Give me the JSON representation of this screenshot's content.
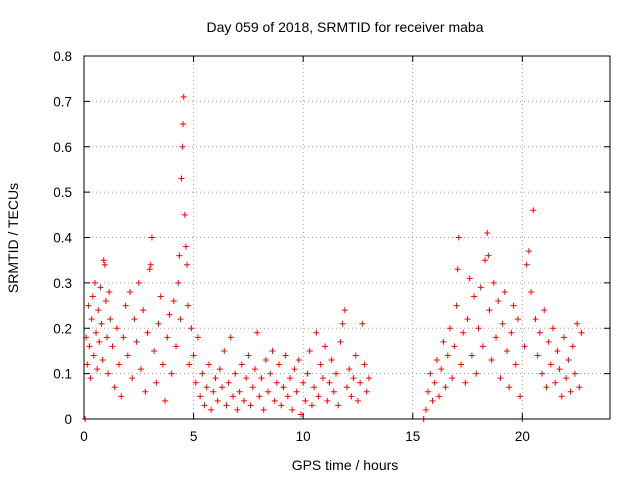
{
  "chart_data": {
    "type": "scatter",
    "title": "Day 059 of 2018, SRMTID for receiver maba",
    "xlabel": "GPS time / hours",
    "ylabel": "SRMTID / TECUs",
    "xlim": [
      0,
      24
    ],
    "ylim": [
      0,
      0.8
    ],
    "xticks": [
      0,
      5,
      10,
      15,
      20
    ],
    "xtick_labels": [
      "0",
      "5",
      "10",
      "15",
      "20"
    ],
    "yticks": [
      0,
      0.1,
      0.2,
      0.3,
      0.4,
      0.5,
      0.6,
      0.7,
      0.8
    ],
    "ytick_labels": [
      "0",
      "0.1",
      "0.2",
      "0.3",
      "0.4",
      "0.5",
      "0.6",
      "0.7",
      "0.8"
    ],
    "grid": true,
    "marker": "plus",
    "color": "#ff0000",
    "series": [
      {
        "name": "SRMTID",
        "points": [
          [
            0.05,
            0.0
          ],
          [
            0.1,
            0.18
          ],
          [
            0.15,
            0.12
          ],
          [
            0.2,
            0.25
          ],
          [
            0.25,
            0.16
          ],
          [
            0.3,
            0.09
          ],
          [
            0.35,
            0.22
          ],
          [
            0.4,
            0.27
          ],
          [
            0.45,
            0.14
          ],
          [
            0.5,
            0.3
          ],
          [
            0.55,
            0.19
          ],
          [
            0.6,
            0.11
          ],
          [
            0.65,
            0.24
          ],
          [
            0.7,
            0.17
          ],
          [
            0.75,
            0.29
          ],
          [
            0.8,
            0.21
          ],
          [
            0.85,
            0.13
          ],
          [
            0.9,
            0.35
          ],
          [
            0.95,
            0.34
          ],
          [
            1.0,
            0.26
          ],
          [
            1.05,
            0.18
          ],
          [
            1.1,
            0.1
          ],
          [
            1.15,
            0.28
          ],
          [
            1.2,
            0.22
          ],
          [
            1.3,
            0.16
          ],
          [
            1.4,
            0.07
          ],
          [
            1.5,
            0.2
          ],
          [
            1.6,
            0.12
          ],
          [
            1.7,
            0.05
          ],
          [
            1.8,
            0.18
          ],
          [
            1.9,
            0.25
          ],
          [
            2.0,
            0.14
          ],
          [
            2.1,
            0.28
          ],
          [
            2.2,
            0.09
          ],
          [
            2.3,
            0.22
          ],
          [
            2.4,
            0.17
          ],
          [
            2.5,
            0.3
          ],
          [
            2.6,
            0.11
          ],
          [
            2.7,
            0.24
          ],
          [
            2.8,
            0.06
          ],
          [
            2.9,
            0.19
          ],
          [
            3.0,
            0.33
          ],
          [
            3.05,
            0.34
          ],
          [
            3.1,
            0.4
          ],
          [
            3.2,
            0.15
          ],
          [
            3.3,
            0.08
          ],
          [
            3.4,
            0.21
          ],
          [
            3.5,
            0.27
          ],
          [
            3.6,
            0.12
          ],
          [
            3.7,
            0.04
          ],
          [
            3.8,
            0.18
          ],
          [
            3.9,
            0.23
          ],
          [
            4.0,
            0.1
          ],
          [
            4.1,
            0.26
          ],
          [
            4.2,
            0.16
          ],
          [
            4.3,
            0.3
          ],
          [
            4.35,
            0.36
          ],
          [
            4.4,
            0.22
          ],
          [
            4.45,
            0.53
          ],
          [
            4.5,
            0.6
          ],
          [
            4.52,
            0.65
          ],
          [
            4.55,
            0.71
          ],
          [
            4.6,
            0.45
          ],
          [
            4.65,
            0.38
          ],
          [
            4.7,
            0.34
          ],
          [
            4.75,
            0.25
          ],
          [
            4.8,
            0.12
          ],
          [
            4.9,
            0.2
          ],
          [
            5.0,
            0.14
          ],
          [
            5.1,
            0.08
          ],
          [
            5.2,
            0.18
          ],
          [
            5.3,
            0.05
          ],
          [
            5.4,
            0.1
          ],
          [
            5.5,
            0.03
          ],
          [
            5.6,
            0.07
          ],
          [
            5.7,
            0.12
          ],
          [
            5.8,
            0.02
          ],
          [
            5.9,
            0.06
          ],
          [
            6.0,
            0.09
          ],
          [
            6.1,
            0.04
          ],
          [
            6.2,
            0.11
          ],
          [
            6.3,
            0.07
          ],
          [
            6.4,
            0.15
          ],
          [
            6.5,
            0.03
          ],
          [
            6.6,
            0.08
          ],
          [
            6.7,
            0.18
          ],
          [
            6.8,
            0.05
          ],
          [
            6.9,
            0.1
          ],
          [
            7.0,
            0.02
          ],
          [
            7.1,
            0.06
          ],
          [
            7.2,
            0.12
          ],
          [
            7.3,
            0.04
          ],
          [
            7.4,
            0.09
          ],
          [
            7.5,
            0.14
          ],
          [
            7.6,
            0.03
          ],
          [
            7.7,
            0.07
          ],
          [
            7.8,
            0.11
          ],
          [
            7.9,
            0.19
          ],
          [
            8.0,
            0.05
          ],
          [
            8.1,
            0.09
          ],
          [
            8.2,
            0.02
          ],
          [
            8.3,
            0.13
          ],
          [
            8.4,
            0.06
          ],
          [
            8.5,
            0.1
          ],
          [
            8.6,
            0.15
          ],
          [
            8.7,
            0.04
          ],
          [
            8.8,
            0.08
          ],
          [
            8.9,
            0.12
          ],
          [
            9.0,
            0.03
          ],
          [
            9.1,
            0.07
          ],
          [
            9.2,
            0.14
          ],
          [
            9.3,
            0.05
          ],
          [
            9.4,
            0.09
          ],
          [
            9.5,
            0.02
          ],
          [
            9.6,
            0.11
          ],
          [
            9.7,
            0.06
          ],
          [
            9.8,
            0.13
          ],
          [
            9.9,
            0.01
          ],
          [
            10.0,
            0.08
          ],
          [
            10.1,
            0.04
          ],
          [
            10.2,
            0.1
          ],
          [
            10.3,
            0.15
          ],
          [
            10.4,
            0.03
          ],
          [
            10.5,
            0.07
          ],
          [
            10.6,
            0.19
          ],
          [
            10.7,
            0.05
          ],
          [
            10.8,
            0.12
          ],
          [
            10.9,
            0.09
          ],
          [
            11.0,
            0.16
          ],
          [
            11.1,
            0.04
          ],
          [
            11.2,
            0.08
          ],
          [
            11.3,
            0.13
          ],
          [
            11.4,
            0.06
          ],
          [
            11.5,
            0.1
          ],
          [
            11.6,
            0.03
          ],
          [
            11.7,
            0.17
          ],
          [
            11.8,
            0.21
          ],
          [
            11.9,
            0.24
          ],
          [
            12.0,
            0.07
          ],
          [
            12.1,
            0.11
          ],
          [
            12.2,
            0.05
          ],
          [
            12.3,
            0.09
          ],
          [
            12.4,
            0.14
          ],
          [
            12.5,
            0.04
          ],
          [
            12.6,
            0.08
          ],
          [
            12.7,
            0.21
          ],
          [
            12.8,
            0.12
          ],
          [
            12.9,
            0.06
          ],
          [
            13.0,
            0.09
          ],
          [
            15.5,
            0.0
          ],
          [
            15.6,
            0.02
          ],
          [
            15.7,
            0.06
          ],
          [
            15.8,
            0.1
          ],
          [
            15.9,
            0.04
          ],
          [
            16.0,
            0.08
          ],
          [
            16.1,
            0.13
          ],
          [
            16.2,
            0.05
          ],
          [
            16.3,
            0.11
          ],
          [
            16.4,
            0.17
          ],
          [
            16.5,
            0.07
          ],
          [
            16.6,
            0.14
          ],
          [
            16.7,
            0.2
          ],
          [
            16.8,
            0.09
          ],
          [
            16.9,
            0.16
          ],
          [
            17.0,
            0.25
          ],
          [
            17.05,
            0.33
          ],
          [
            17.1,
            0.4
          ],
          [
            17.2,
            0.12
          ],
          [
            17.3,
            0.19
          ],
          [
            17.4,
            0.08
          ],
          [
            17.5,
            0.22
          ],
          [
            17.6,
            0.31
          ],
          [
            17.7,
            0.14
          ],
          [
            17.8,
            0.27
          ],
          [
            17.9,
            0.1
          ],
          [
            18.0,
            0.2
          ],
          [
            18.1,
            0.29
          ],
          [
            18.2,
            0.16
          ],
          [
            18.3,
            0.35
          ],
          [
            18.4,
            0.41
          ],
          [
            18.45,
            0.36
          ],
          [
            18.5,
            0.24
          ],
          [
            18.6,
            0.13
          ],
          [
            18.7,
            0.3
          ],
          [
            18.8,
            0.18
          ],
          [
            18.9,
            0.26
          ],
          [
            19.0,
            0.09
          ],
          [
            19.1,
            0.21
          ],
          [
            19.2,
            0.28
          ],
          [
            19.3,
            0.15
          ],
          [
            19.4,
            0.07
          ],
          [
            19.5,
            0.19
          ],
          [
            19.6,
            0.25
          ],
          [
            19.7,
            0.12
          ],
          [
            19.8,
            0.22
          ],
          [
            19.9,
            0.05
          ],
          [
            20.0,
            0.0
          ],
          [
            20.1,
            0.16
          ],
          [
            20.2,
            0.34
          ],
          [
            20.3,
            0.37
          ],
          [
            20.4,
            0.28
          ],
          [
            20.5,
            0.46
          ],
          [
            20.6,
            0.22
          ],
          [
            20.7,
            0.14
          ],
          [
            20.8,
            0.19
          ],
          [
            20.9,
            0.1
          ],
          [
            21.0,
            0.24
          ],
          [
            21.1,
            0.07
          ],
          [
            21.2,
            0.17
          ],
          [
            21.3,
            0.12
          ],
          [
            21.4,
            0.2
          ],
          [
            21.5,
            0.08
          ],
          [
            21.6,
            0.15
          ],
          [
            21.7,
            0.11
          ],
          [
            21.8,
            0.05
          ],
          [
            21.9,
            0.18
          ],
          [
            22.0,
            0.09
          ],
          [
            22.1,
            0.13
          ],
          [
            22.2,
            0.06
          ],
          [
            22.3,
            0.16
          ],
          [
            22.4,
            0.1
          ],
          [
            22.5,
            0.21
          ],
          [
            22.6,
            0.07
          ],
          [
            22.7,
            0.19
          ]
        ]
      }
    ]
  }
}
